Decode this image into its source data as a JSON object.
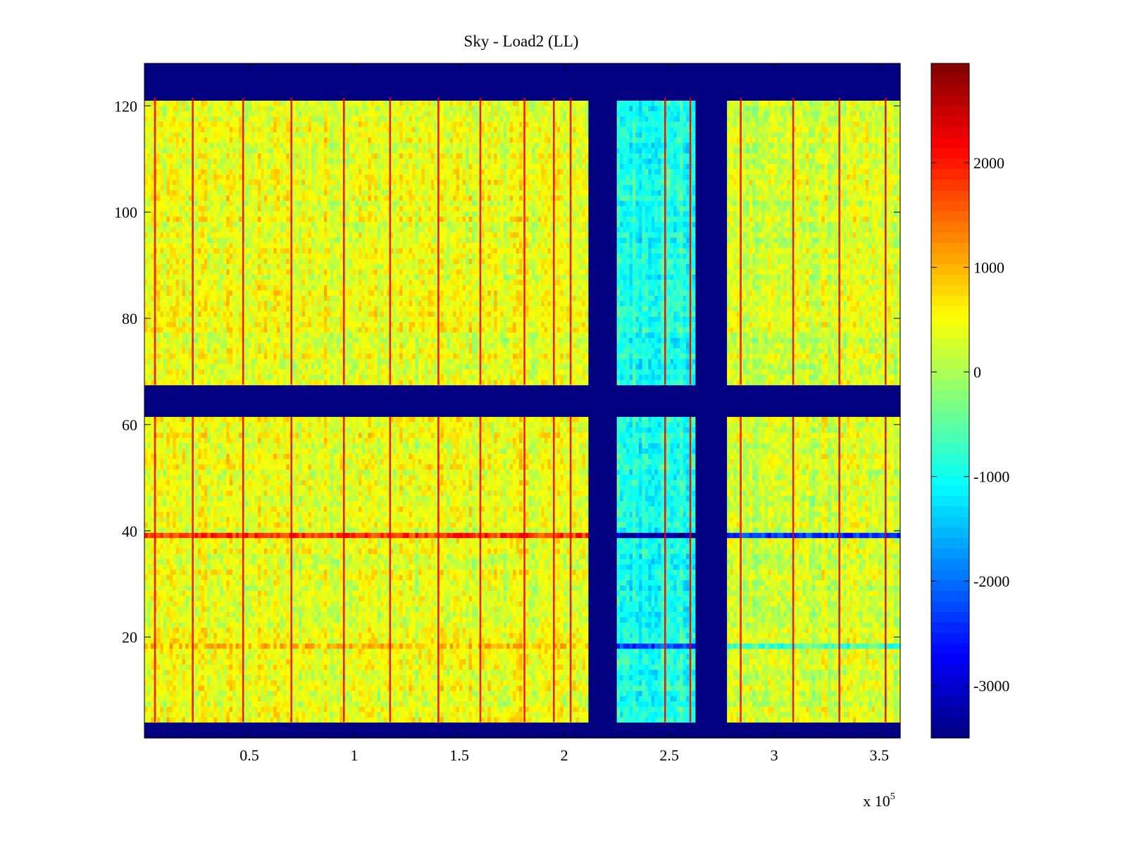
{
  "chart_data": {
    "type": "heatmap",
    "title": "Sky - Load2 (LL)",
    "xlabel": "",
    "ylabel": "",
    "x_multiplier_label": "x 10",
    "x_multiplier_exponent": "5",
    "xlim": [
      0,
      3.6
    ],
    "ylim": [
      1,
      128
    ],
    "x_ticks": [
      {
        "value": 0.5,
        "label": "0.5"
      },
      {
        "value": 1.0,
        "label": "1"
      },
      {
        "value": 1.5,
        "label": "1.5"
      },
      {
        "value": 2.0,
        "label": "2"
      },
      {
        "value": 2.5,
        "label": "2.5"
      },
      {
        "value": 3.0,
        "label": "3"
      },
      {
        "value": 3.5,
        "label": "3.5"
      }
    ],
    "y_ticks": [
      {
        "value": 20,
        "label": "20"
      },
      {
        "value": 40,
        "label": "40"
      },
      {
        "value": 60,
        "label": "60"
      },
      {
        "value": 80,
        "label": "80"
      },
      {
        "value": 100,
        "label": "100"
      },
      {
        "value": 120,
        "label": "120"
      }
    ],
    "colorbar": {
      "colormap": "jet",
      "range": [
        -3500,
        2950
      ],
      "ticks": [
        {
          "value": 2000,
          "label": "2000"
        },
        {
          "value": 1000,
          "label": "1000"
        },
        {
          "value": 0,
          "label": "0"
        },
        {
          "value": -1000,
          "label": "-1000"
        },
        {
          "value": -2000,
          "label": "-2000"
        },
        {
          "value": -3000,
          "label": "-3000"
        }
      ]
    },
    "masked_row_bands": [
      [
        1,
        4
      ],
      [
        61.5,
        67.5
      ],
      [
        121.5,
        128
      ]
    ],
    "masked_column_bands": [
      [
        2.12,
        2.25
      ],
      [
        2.63,
        2.77
      ]
    ],
    "regions": [
      {
        "name": "left",
        "x": [
          0,
          2.12
        ],
        "mean_value": 400
      },
      {
        "name": "middle",
        "x": [
          2.25,
          2.63
        ],
        "mean_value": -900
      },
      {
        "name": "right",
        "x": [
          2.77,
          3.6
        ],
        "mean_value": 250
      }
    ],
    "high_columns_x": [
      0.05,
      0.23,
      0.47,
      0.7,
      0.95,
      1.17,
      1.4,
      1.6,
      1.81,
      1.95,
      2.03,
      2.48,
      2.6,
      2.84,
      3.09,
      3.31,
      3.53
    ],
    "row_anomalies": [
      {
        "y": 39,
        "left_value": 1800,
        "middle_value": -3200,
        "right_value": -2400
      },
      {
        "y": 18,
        "left_value": 900,
        "middle_value": -2300,
        "right_value": -700
      }
    ]
  }
}
